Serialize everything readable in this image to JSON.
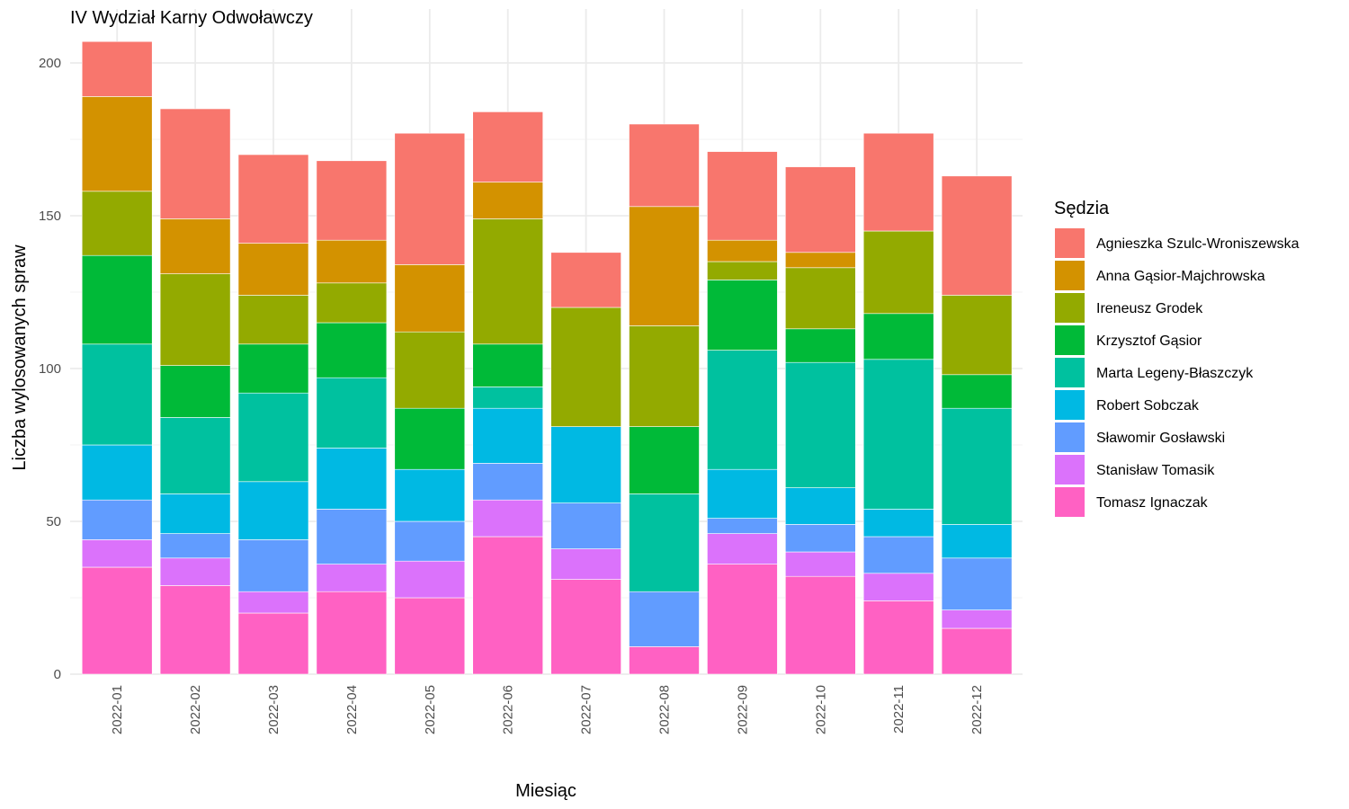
{
  "chart_data": {
    "type": "bar",
    "stacked": true,
    "title": "IV Wydział Karny Odwoławczy",
    "xlabel": "Miesiąc",
    "ylabel": "Liczba wylosowanych spraw",
    "ylim": [
      0,
      207
    ],
    "y_ticks": [
      0,
      50,
      100,
      150,
      200
    ],
    "grid": true,
    "legend_title": "Sędzia",
    "legend_position": "right",
    "categories": [
      "2022-01",
      "2022-02",
      "2022-03",
      "2022-04",
      "2022-05",
      "2022-06",
      "2022-07",
      "2022-08",
      "2022-09",
      "2022-10",
      "2022-11",
      "2022-12"
    ],
    "series": [
      {
        "name": "Tomasz Ignaczak",
        "color": "#FF61C3",
        "values": [
          35,
          29,
          20,
          27,
          25,
          45,
          31,
          9,
          36,
          32,
          24,
          15
        ]
      },
      {
        "name": "Stanisław Tomasik",
        "color": "#DB72FB",
        "values": [
          9,
          9,
          7,
          9,
          12,
          12,
          10,
          0,
          10,
          8,
          9,
          6
        ]
      },
      {
        "name": "Sławomir Gosławski",
        "color": "#619CFF",
        "values": [
          13,
          8,
          17,
          18,
          13,
          12,
          15,
          18,
          5,
          9,
          12,
          17
        ]
      },
      {
        "name": "Robert Sobczak",
        "color": "#00B9E3",
        "values": [
          18,
          13,
          19,
          20,
          17,
          18,
          25,
          0,
          16,
          12,
          9,
          11
        ]
      },
      {
        "name": "Marta Legeny-Błaszczyk",
        "color": "#00C19F",
        "values": [
          33,
          25,
          29,
          23,
          0,
          7,
          0,
          32,
          39,
          41,
          49,
          38
        ]
      },
      {
        "name": "Krzysztof Gąsior",
        "color": "#00BA38",
        "values": [
          29,
          17,
          16,
          18,
          20,
          14,
          0,
          22,
          23,
          11,
          15,
          11
        ]
      },
      {
        "name": "Ireneusz Grodek",
        "color": "#93AA00",
        "values": [
          21,
          30,
          16,
          13,
          25,
          41,
          39,
          33,
          6,
          20,
          27,
          26
        ]
      },
      {
        "name": "Anna Gąsior-Majchrowska",
        "color": "#D39200",
        "values": [
          31,
          18,
          17,
          14,
          22,
          12,
          0,
          39,
          7,
          5,
          0,
          0
        ]
      },
      {
        "name": "Agnieszka Szulc-Wroniszewska",
        "color": "#F8766D",
        "values": [
          18,
          36,
          29,
          26,
          43,
          23,
          18,
          27,
          29,
          28,
          32,
          39
        ]
      }
    ],
    "legend_order": [
      "Agnieszka Szulc-Wroniszewska",
      "Anna Gąsior-Majchrowska",
      "Ireneusz Grodek",
      "Krzysztof Gąsior",
      "Marta Legeny-Błaszczyk",
      "Robert Sobczak",
      "Sławomir Gosławski",
      "Stanisław Tomasik",
      "Tomasz Ignaczak"
    ]
  }
}
